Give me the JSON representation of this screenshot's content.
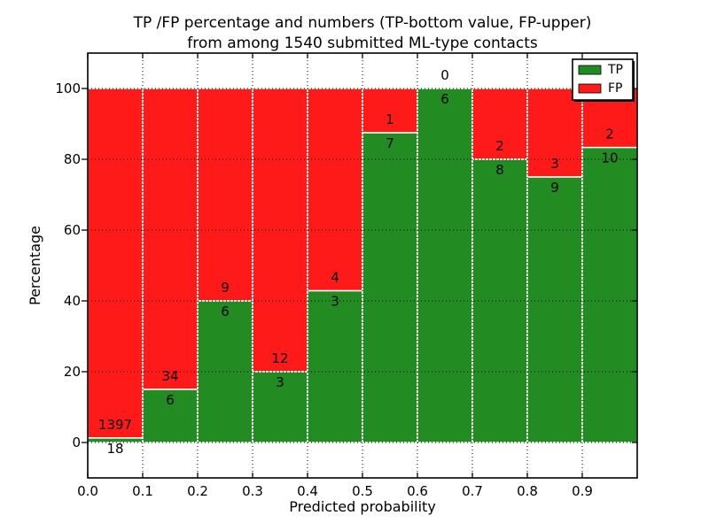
{
  "chart_data": {
    "type": "bar",
    "stacked": true,
    "title_line1": "TP /FP percentage and numbers (TP-bottom value, FP-upper)",
    "title_line2": "from among 1540 submitted ML-type contacts",
    "xlabel": "Predicted probability",
    "ylabel": "Percentage",
    "total_contacts": 1540,
    "x_tick_labels": [
      "0.0",
      "0.1",
      "0.2",
      "0.3",
      "0.4",
      "0.5",
      "0.6",
      "0.7",
      "0.8",
      "0.9"
    ],
    "y_ticks": [
      0,
      20,
      40,
      60,
      80,
      100
    ],
    "ylim": [
      -10,
      110
    ],
    "xlim": [
      0.0,
      1.0
    ],
    "bin_width": 0.1,
    "grid": true,
    "legend_position": "upper-right",
    "legend": [
      {
        "label": "TP",
        "color": "#228b22"
      },
      {
        "label": "FP",
        "color": "#ff1a1a"
      }
    ],
    "colors": {
      "tp": "#228b22",
      "fp": "#ff1a1a",
      "bar_edge": "#ffffff",
      "grid": "#000000",
      "spine": "#000000"
    },
    "bins": [
      {
        "x_start": 0.0,
        "tp": 18,
        "fp": 1397
      },
      {
        "x_start": 0.1,
        "tp": 6,
        "fp": 34
      },
      {
        "x_start": 0.2,
        "tp": 6,
        "fp": 9
      },
      {
        "x_start": 0.3,
        "tp": 3,
        "fp": 12
      },
      {
        "x_start": 0.4,
        "tp": 3,
        "fp": 4
      },
      {
        "x_start": 0.5,
        "tp": 7,
        "fp": 1
      },
      {
        "x_start": 0.6,
        "tp": 6,
        "fp": 0
      },
      {
        "x_start": 0.7,
        "tp": 8,
        "fp": 2
      },
      {
        "x_start": 0.8,
        "tp": 9,
        "fp": 3
      },
      {
        "x_start": 0.9,
        "tp": 10,
        "fp": 2
      }
    ]
  }
}
